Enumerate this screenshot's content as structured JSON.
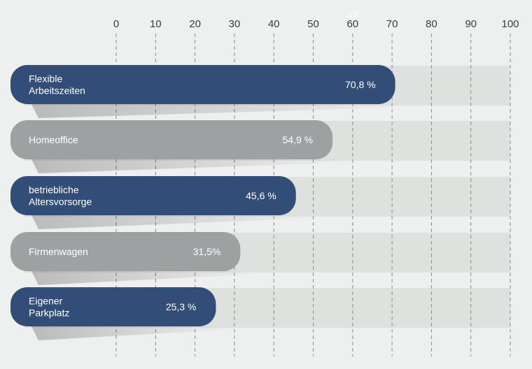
{
  "chart_data": {
    "type": "bar",
    "orientation": "horizontal",
    "title": "",
    "xlabel": "",
    "ylabel": "",
    "xlim": [
      0,
      100
    ],
    "x_ticks": [
      "0",
      "10",
      "20",
      "30",
      "40",
      "50",
      "60",
      "70",
      "80",
      "90",
      "100"
    ],
    "grid": "vertical dashed",
    "background_track": true,
    "categories": [
      [
        "Flexible",
        "Arbeitszeiten"
      ],
      [
        "Homeoffice"
      ],
      [
        "betriebliche",
        "Altersvorsorge"
      ],
      [
        "Firmenwagen"
      ],
      [
        "Eigener",
        "Parkplatz"
      ]
    ],
    "values": [
      70.8,
      54.9,
      45.6,
      31.5,
      25.3
    ],
    "value_labels": [
      "70,8 %",
      "54,9 %",
      "45,6 %",
      "31,5%",
      "25,3 %"
    ],
    "stray_text": "12",
    "colors": {
      "background": "#eef0ef",
      "track": "#dfe1df",
      "bar_blue": "#324e78",
      "bar_gray": "#9ea0a2",
      "grid": "#8a8a8a",
      "tick_text": "#3a3a3a",
      "bar_text": "#ffffff"
    },
    "bar_colors": [
      "bar_blue",
      "bar_gray",
      "bar_blue",
      "bar_gray",
      "bar_blue"
    ]
  }
}
